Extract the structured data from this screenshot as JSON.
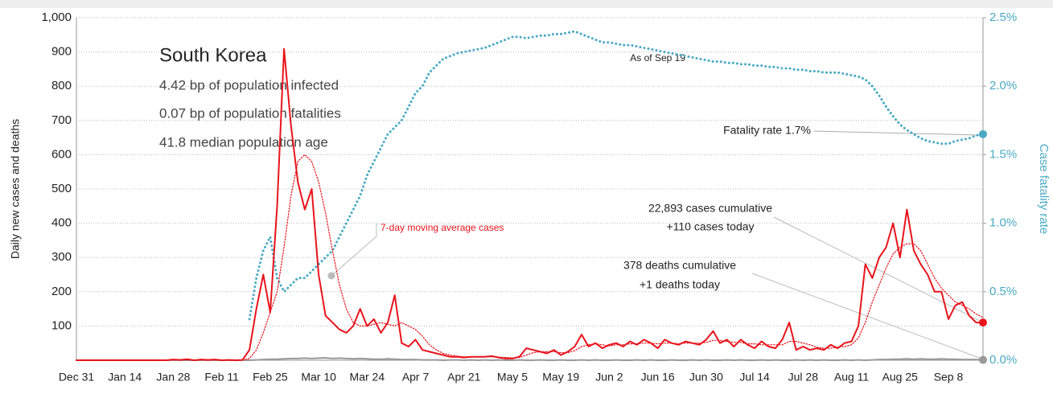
{
  "chart_data": {
    "type": "line",
    "annotations": {
      "heading": "South Korea",
      "infected": "4.42 bp of population infected",
      "fatalities": "0.07 bp of population fatalities",
      "age": "41.8 median population age",
      "as_of": "As of Sep 19",
      "fatality_rate": "Fatality rate 1.7%",
      "cases_cumulative": "22,893 cases cumulative",
      "cases_today": "+110 cases today",
      "deaths_cumulative": "378 deaths cumulative",
      "deaths_today": "+1 deaths today"
    },
    "ylabel": "Daily new cases and deaths",
    "y2label": "Case fatality rate",
    "categories": [
      "Dec 31",
      null,
      null,
      null,
      null,
      null,
      null,
      "Jan 14",
      null,
      null,
      null,
      null,
      null,
      null,
      "Jan 28",
      null,
      null,
      null,
      null,
      null,
      null,
      "Feb 11",
      null,
      null,
      null,
      null,
      null,
      null,
      "Feb 25",
      null,
      null,
      null,
      null,
      null,
      null,
      "Mar 10",
      null,
      null,
      null,
      null,
      null,
      null,
      "Mar 24",
      null,
      null,
      null,
      null,
      null,
      null,
      "Apr 7",
      null,
      null,
      null,
      null,
      null,
      null,
      "Apr 21",
      null,
      null,
      null,
      null,
      null,
      null,
      "May 5",
      null,
      null,
      null,
      null,
      null,
      null,
      "May 19",
      null,
      null,
      null,
      null,
      null,
      null,
      "Jun 2",
      null,
      null,
      null,
      null,
      null,
      null,
      "Jun 16",
      null,
      null,
      null,
      null,
      null,
      null,
      "Jun 30",
      null,
      null,
      null,
      null,
      null,
      null,
      "Jul 14",
      null,
      null,
      null,
      null,
      null,
      null,
      "Jul 28",
      null,
      null,
      null,
      null,
      null,
      null,
      "Aug 11",
      null,
      null,
      null,
      null,
      null,
      null,
      "Aug 25",
      null,
      null,
      null,
      null,
      null,
      null,
      "Sep 8",
      null,
      null,
      null,
      null,
      null
    ],
    "series": [
      {
        "color": "#e8141c",
        "style": "solid",
        "values": [
          0,
          0,
          0,
          0,
          0,
          0,
          0,
          0,
          0,
          0,
          0,
          0,
          0,
          0,
          2,
          1,
          3,
          0,
          2,
          1,
          2,
          0,
          1,
          0,
          1,
          30,
          150,
          250,
          140,
          450,
          909,
          686,
          520,
          440,
          500,
          250,
          130,
          110,
          90,
          80,
          100,
          150,
          100,
          120,
          80,
          110,
          190,
          50,
          40,
          60,
          30,
          25,
          20,
          15,
          10,
          10,
          8,
          10,
          10,
          10,
          12,
          8,
          5,
          5,
          10,
          35,
          30,
          25,
          20,
          30,
          15,
          25,
          40,
          75,
          40,
          50,
          35,
          45,
          50,
          40,
          55,
          45,
          60,
          50,
          35,
          60,
          50,
          45,
          55,
          50,
          45,
          60,
          85,
          50,
          60,
          40,
          60,
          45,
          35,
          55,
          40,
          35,
          60,
          110,
          30,
          40,
          30,
          35,
          30,
          45,
          35,
          50,
          55,
          100,
          280,
          240,
          300,
          330,
          400,
          300,
          440,
          320,
          280,
          250,
          200,
          200,
          120,
          160,
          170,
          130,
          110,
          110
        ]
      },
      {
        "name": "7-day moving average cases",
        "color": "#e8141c",
        "style": "dotted",
        "values": [
          0,
          0,
          0,
          0,
          0,
          0,
          0,
          0,
          0,
          0,
          0,
          0,
          0,
          0,
          1,
          1,
          1,
          1,
          1,
          1,
          1,
          1,
          1,
          1,
          1,
          5,
          30,
          80,
          140,
          200,
          330,
          480,
          580,
          600,
          580,
          520,
          430,
          320,
          220,
          150,
          110,
          100,
          100,
          105,
          110,
          105,
          100,
          110,
          100,
          90,
          70,
          45,
          30,
          20,
          15,
          12,
          10,
          10,
          10,
          10,
          10,
          9,
          8,
          7,
          8,
          15,
          22,
          25,
          25,
          25,
          22,
          22,
          28,
          40,
          45,
          48,
          45,
          42,
          45,
          45,
          48,
          48,
          50,
          50,
          48,
          50,
          50,
          48,
          50,
          50,
          50,
          52,
          58,
          58,
          55,
          52,
          52,
          48,
          48,
          45,
          45,
          45,
          45,
          55,
          55,
          50,
          45,
          38,
          35,
          35,
          38,
          40,
          45,
          65,
          110,
          170,
          220,
          270,
          310,
          330,
          340,
          340,
          320,
          280,
          240,
          210,
          190,
          170,
          160,
          150,
          135,
          125
        ]
      },
      {
        "color": "#9a9a9a",
        "style": "solid",
        "values": [
          0,
          0,
          0,
          0,
          0,
          0,
          0,
          0,
          0,
          0,
          0,
          0,
          0,
          0,
          0,
          0,
          0,
          0,
          0,
          0,
          0,
          0,
          0,
          0,
          0,
          0,
          1,
          2,
          3,
          3,
          4,
          5,
          5,
          6,
          5,
          6,
          7,
          5,
          6,
          5,
          4,
          5,
          4,
          3,
          3,
          4,
          3,
          2,
          2,
          2,
          1,
          1,
          1,
          0,
          1,
          1,
          0,
          1,
          0,
          1,
          0,
          1,
          0,
          0,
          1,
          0,
          0,
          1,
          0,
          0,
          1,
          0,
          0,
          1,
          0,
          1,
          0,
          0,
          1,
          0,
          0,
          1,
          0,
          1,
          0,
          0,
          1,
          0,
          0,
          1,
          0,
          1,
          0,
          0,
          1,
          0,
          1,
          0,
          0,
          1,
          0,
          1,
          0,
          0,
          1,
          0,
          1,
          0,
          1,
          0,
          0,
          1,
          0,
          1,
          0,
          1,
          2,
          2,
          3,
          3,
          4,
          3,
          4,
          3,
          3,
          4,
          3,
          3,
          2,
          2,
          2,
          1
        ]
      },
      {
        "color": "#4aaac4",
        "style": "dotted",
        "axis": "y2",
        "values": [
          null,
          null,
          null,
          null,
          null,
          null,
          null,
          null,
          null,
          null,
          null,
          null,
          null,
          null,
          null,
          null,
          null,
          null,
          null,
          null,
          null,
          null,
          null,
          null,
          null,
          0.3,
          0.6,
          0.8,
          0.9,
          0.6,
          0.5,
          0.55,
          0.6,
          0.6,
          0.65,
          0.7,
          0.75,
          0.8,
          0.9,
          1.0,
          1.1,
          1.2,
          1.35,
          1.45,
          1.55,
          1.65,
          1.7,
          1.75,
          1.85,
          1.95,
          2.0,
          2.1,
          2.15,
          2.2,
          2.22,
          2.24,
          2.25,
          2.26,
          2.27,
          2.28,
          2.3,
          2.32,
          2.34,
          2.36,
          2.36,
          2.35,
          2.36,
          2.37,
          2.37,
          2.38,
          2.38,
          2.39,
          2.4,
          2.38,
          2.36,
          2.34,
          2.32,
          2.32,
          2.31,
          2.3,
          2.3,
          2.29,
          2.28,
          2.27,
          2.26,
          2.25,
          2.24,
          2.23,
          2.22,
          2.21,
          2.2,
          2.19,
          2.18,
          2.18,
          2.17,
          2.17,
          2.16,
          2.16,
          2.15,
          2.15,
          2.14,
          2.14,
          2.13,
          2.13,
          2.12,
          2.12,
          2.11,
          2.11,
          2.1,
          2.1,
          2.1,
          2.09,
          2.08,
          2.07,
          2.05,
          2.0,
          1.93,
          1.85,
          1.78,
          1.72,
          1.68,
          1.65,
          1.62,
          1.6,
          1.59,
          1.58,
          1.58,
          1.6,
          1.61,
          1.62,
          1.64,
          1.65
        ]
      }
    ],
    "ylim": [
      0,
      1000
    ],
    "yticks": [
      100,
      200,
      300,
      400,
      500,
      600,
      700,
      800,
      900,
      {
        "value": 1000,
        "label": "1,000"
      }
    ],
    "y2lim": [
      0,
      2.5
    ],
    "y2ticks": [
      {
        "value": 0,
        "label": "0.0%"
      },
      {
        "value": 0.5,
        "label": "0.5%"
      },
      {
        "value": 1,
        "label": "1.0%"
      },
      {
        "value": 1.5,
        "label": "1.5%"
      },
      {
        "value": 2,
        "label": "2.0%"
      },
      {
        "value": 2.5,
        "label": "2.5%"
      }
    ],
    "grid": true
  }
}
